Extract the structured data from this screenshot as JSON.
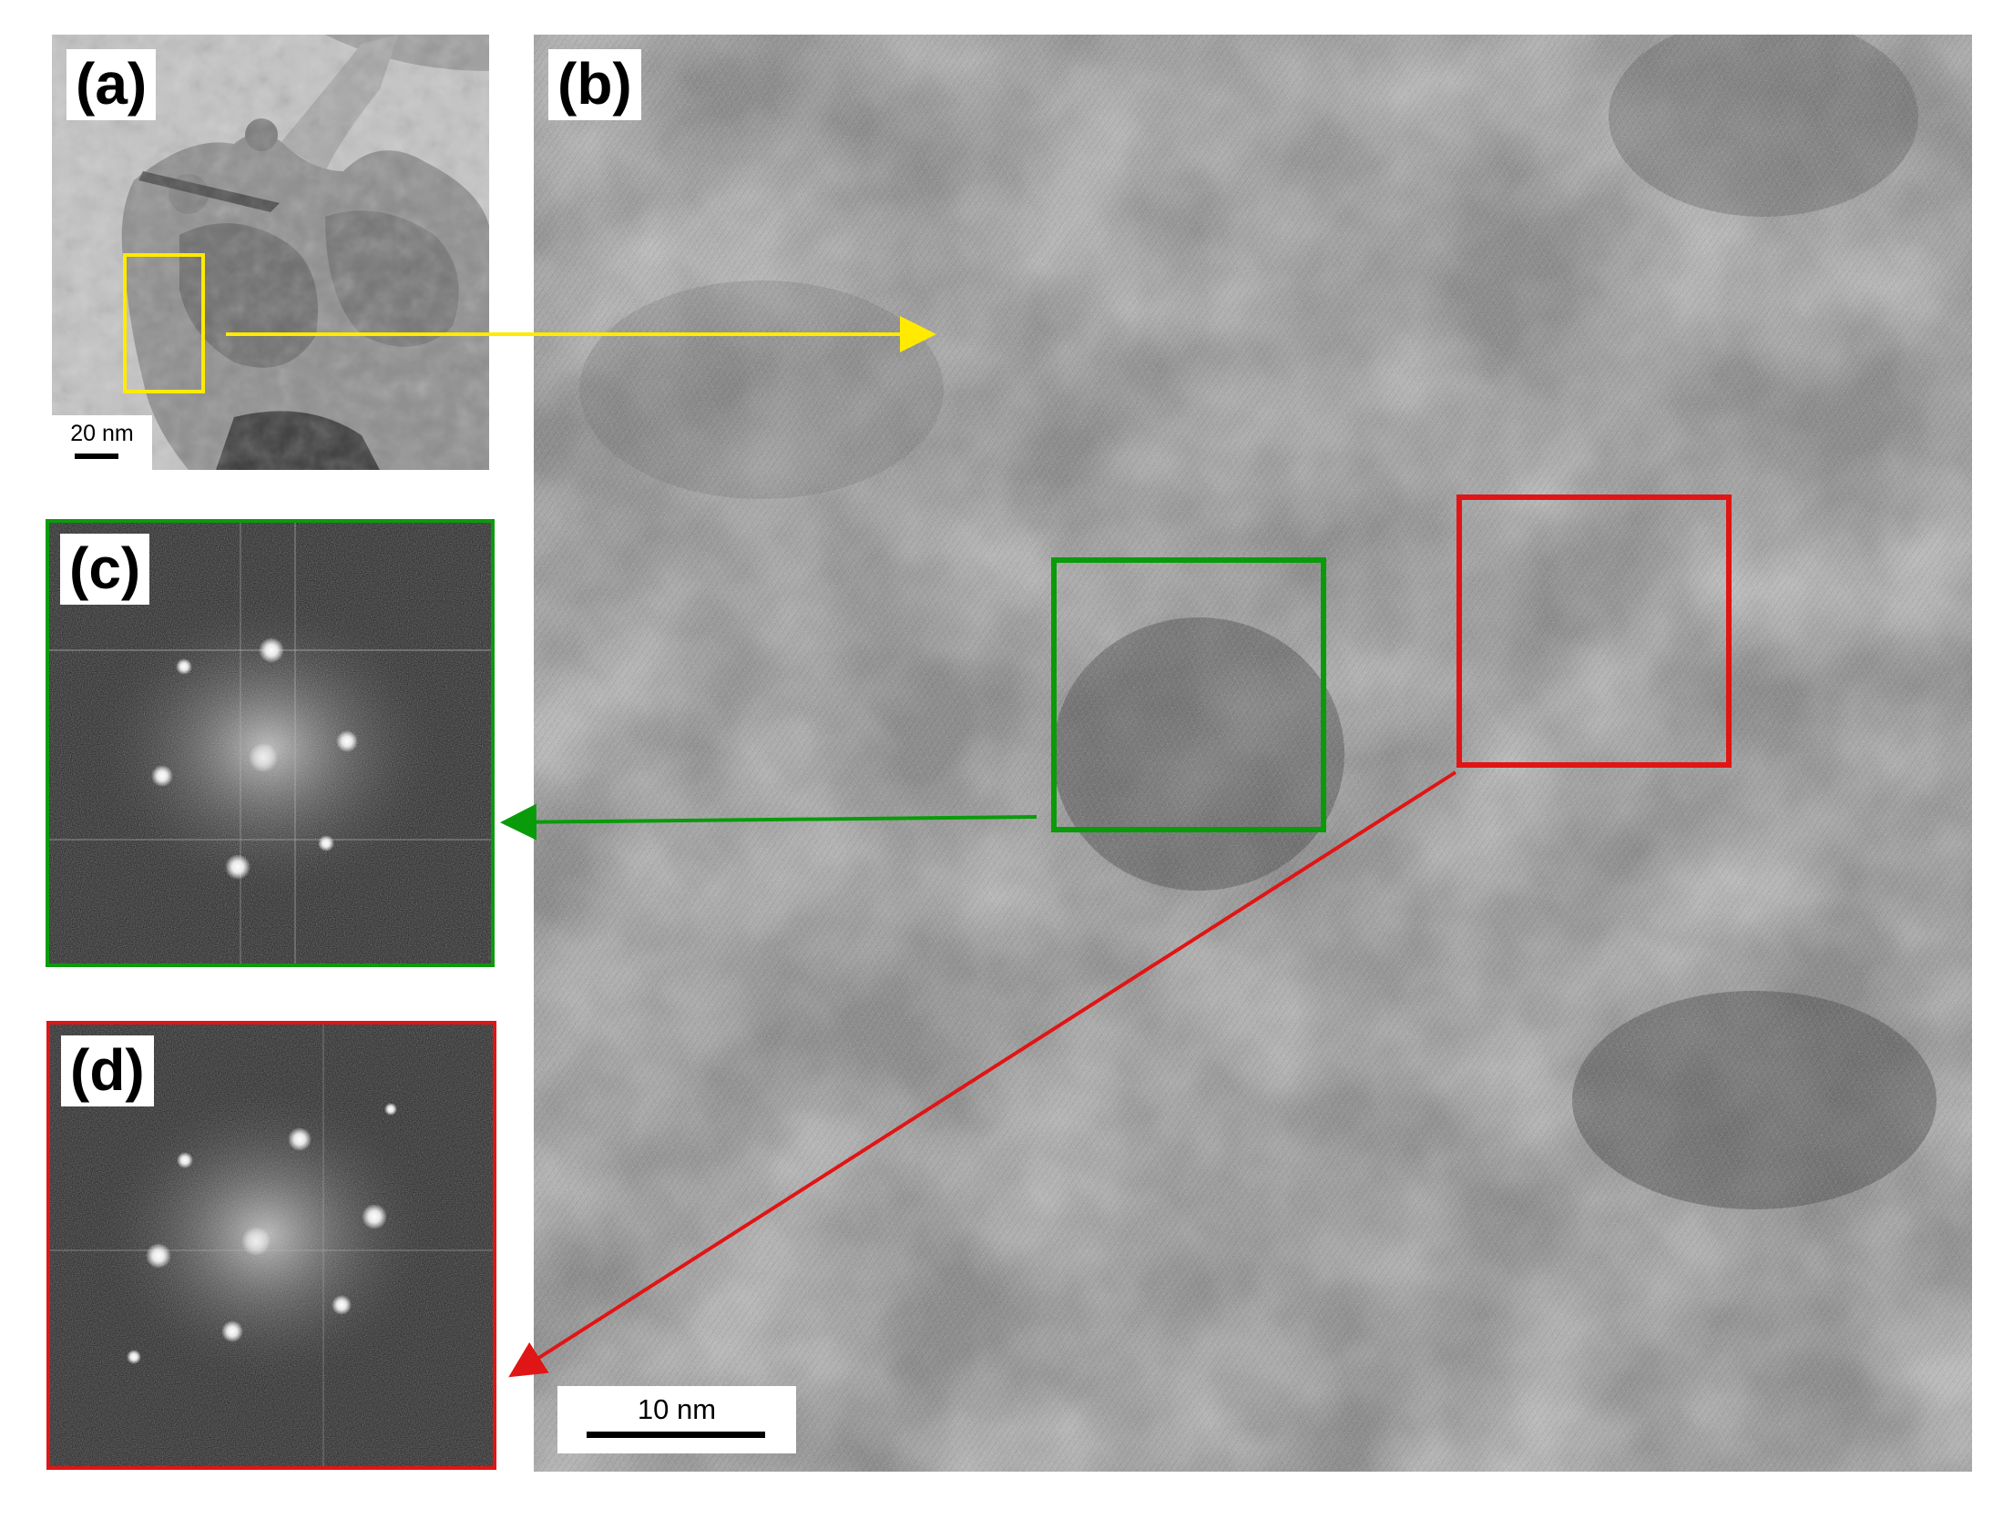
{
  "panels": {
    "a": {
      "label": "(a)",
      "scalebar": "20 nm"
    },
    "b": {
      "label": "(b)",
      "scalebar": "10 nm"
    },
    "c": {
      "label": "(c)"
    },
    "d": {
      "label": "(d)"
    }
  },
  "colors": {
    "yellow": "#ffea00",
    "green": "#0a9b0a",
    "red": "#e01515"
  }
}
